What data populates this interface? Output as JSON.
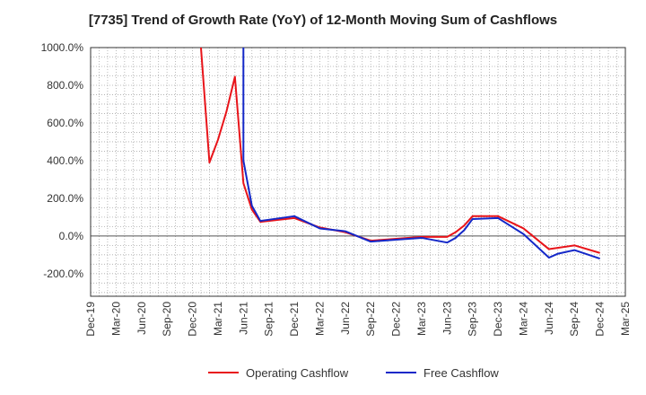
{
  "chart_data": {
    "type": "line",
    "title": "[7735]  Trend of Growth Rate (YoY) of 12-Month Moving Sum of Cashflows",
    "xlabel": "",
    "ylabel": "",
    "ylim": [
      -320,
      1000
    ],
    "y_ticks": [
      "1000.0%",
      "800.0%",
      "600.0%",
      "400.0%",
      "200.0%",
      "0.0%",
      "-200.0%"
    ],
    "y_tick_values": [
      1000,
      800,
      600,
      400,
      200,
      0,
      -200
    ],
    "x_ticks": [
      "Dec-19",
      "Mar-20",
      "Jun-20",
      "Sep-20",
      "Dec-20",
      "Mar-21",
      "Jun-21",
      "Sep-21",
      "Dec-21",
      "Mar-22",
      "Jun-22",
      "Sep-22",
      "Dec-22",
      "Mar-23",
      "Jun-23",
      "Sep-23",
      "Dec-23",
      "Mar-24",
      "Jun-24",
      "Sep-24",
      "Dec-24",
      "Mar-25"
    ],
    "grid": true,
    "legend_position": "bottom",
    "series": [
      {
        "name": "Operating Cashflow",
        "color": "#e8141a",
        "points": [
          [
            "Jan-21",
            1000
          ],
          [
            "Feb-21",
            390
          ],
          [
            "Mar-21",
            510
          ],
          [
            "Apr-21",
            660
          ],
          [
            "May-21",
            845
          ],
          [
            "Jun-21",
            280
          ],
          [
            "Jul-21",
            140
          ],
          [
            "Aug-21",
            75
          ],
          [
            "Dec-21",
            95
          ],
          [
            "Mar-22",
            45
          ],
          [
            "Jun-22",
            20
          ],
          [
            "Sep-22",
            -25
          ],
          [
            "Dec-22",
            -15
          ],
          [
            "Mar-23",
            -5
          ],
          [
            "Jun-23",
            -5
          ],
          [
            "Jul-23",
            20
          ],
          [
            "Aug-23",
            55
          ],
          [
            "Sep-23",
            105
          ],
          [
            "Dec-23",
            105
          ],
          [
            "Mar-24",
            40
          ],
          [
            "Jun-24",
            -70
          ],
          [
            "Sep-24",
            -50
          ],
          [
            "Dec-24",
            -90
          ]
        ]
      },
      {
        "name": "Free Cashflow",
        "color": "#1428c8",
        "points": [
          [
            "Jun-21",
            1000
          ],
          [
            "Jun-21",
            400
          ],
          [
            "Jul-21",
            160
          ],
          [
            "Aug-21",
            80
          ],
          [
            "Dec-21",
            105
          ],
          [
            "Mar-22",
            40
          ],
          [
            "Jun-22",
            25
          ],
          [
            "Sep-22",
            -30
          ],
          [
            "Dec-22",
            -20
          ],
          [
            "Mar-23",
            -10
          ],
          [
            "Jun-23",
            -35
          ],
          [
            "Jul-23",
            -10
          ],
          [
            "Aug-23",
            30
          ],
          [
            "Sep-23",
            90
          ],
          [
            "Dec-23",
            95
          ],
          [
            "Mar-24",
            10
          ],
          [
            "Jun-24",
            -115
          ],
          [
            "Jul-24",
            -95
          ],
          [
            "Sep-24",
            -75
          ],
          [
            "Dec-24",
            -120
          ]
        ]
      }
    ]
  }
}
